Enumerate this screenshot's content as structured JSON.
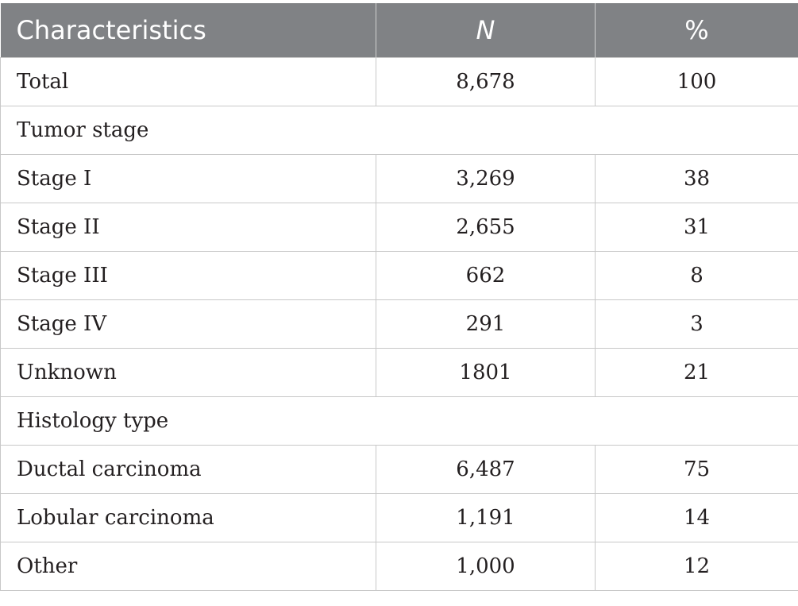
{
  "table": {
    "headers": [
      "Characteristics",
      "N",
      "%"
    ],
    "rows": [
      {
        "type": "data",
        "label": "Total",
        "n": "8,678",
        "pct": "100"
      },
      {
        "type": "section",
        "label": "Tumor stage"
      },
      {
        "type": "data",
        "label": "Stage I",
        "n": "3,269",
        "pct": "38"
      },
      {
        "type": "data",
        "label": "Stage II",
        "n": "2,655",
        "pct": "31"
      },
      {
        "type": "data",
        "label": "Stage III",
        "n": "662",
        "pct": "8"
      },
      {
        "type": "data",
        "label": "Stage IV",
        "n": "291",
        "pct": "3"
      },
      {
        "type": "data",
        "label": "Unknown",
        "n": "1801",
        "pct": "21"
      },
      {
        "type": "section",
        "label": "Histology type"
      },
      {
        "type": "data",
        "label": "Ductal carcinoma",
        "n": "6,487",
        "pct": "75"
      },
      {
        "type": "data",
        "label": "Lobular carcinoma",
        "n": "1,191",
        "pct": "14"
      },
      {
        "type": "data",
        "label": "Other",
        "n": "1,000",
        "pct": "12"
      }
    ]
  }
}
